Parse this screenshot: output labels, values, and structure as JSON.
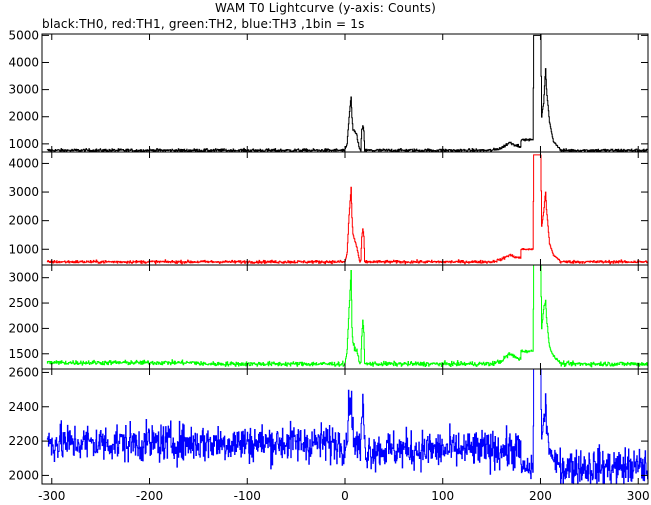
{
  "title": "WAM T0 Lightcurve (y-axis: Counts)",
  "subtitle": "black:TH0, red:TH1, green:TH2, blue:TH3 ,1bin = 1s",
  "chart_data": [
    {
      "type": "line",
      "series": [
        {
          "name": "TH0",
          "color": "#000000"
        }
      ],
      "xlim": [
        -310,
        310
      ],
      "ylim": [
        700,
        5050
      ],
      "yticks": [
        1000,
        2000,
        3000,
        4000,
        5000
      ],
      "baseline": 760,
      "noise": 28,
      "features": {
        "spike1": {
          "x": [
            0,
            2,
            4,
            6,
            7,
            8,
            10,
            12,
            14,
            15
          ],
          "y": [
            760,
            1000,
            2000,
            2750,
            2000,
            1500,
            1450,
            1300,
            900,
            760
          ]
        },
        "spike2": {
          "x": [
            16,
            17,
            18,
            19,
            20
          ],
          "y": [
            760,
            1500,
            1650,
            1500,
            760
          ]
        },
        "bump": {
          "x": [
            150,
            160,
            168,
            175,
            180
          ],
          "y": [
            760,
            850,
            1050,
            950,
            900
          ]
        },
        "step": {
          "x": [
            180,
            192,
            193,
            200,
            201,
            203,
            205,
            206,
            209,
            213,
            220
          ],
          "y": [
            1150,
            1150,
            5000,
            5000,
            2000,
            2500,
            3800,
            3000,
            1800,
            1100,
            800
          ]
        }
      }
    },
    {
      "type": "line",
      "series": [
        {
          "name": "TH1",
          "color": "#ff0000"
        }
      ],
      "xlim": [
        -310,
        310
      ],
      "ylim": [
        450,
        4400
      ],
      "yticks": [
        1000,
        2000,
        3000,
        4000
      ],
      "baseline": 560,
      "noise": 25,
      "features": {
        "spike1": {
          "x": [
            0,
            2,
            4,
            6,
            7,
            8,
            10,
            12,
            14,
            15
          ],
          "y": [
            560,
            900,
            2200,
            3150,
            2100,
            1500,
            1300,
            1050,
            700,
            560
          ]
        },
        "spike2": {
          "x": [
            16,
            17,
            18,
            19,
            20
          ],
          "y": [
            560,
            1450,
            1700,
            1450,
            560
          ]
        },
        "bump": {
          "x": [
            150,
            160,
            168,
            175,
            180
          ],
          "y": [
            560,
            650,
            800,
            720,
            700
          ]
        },
        "step": {
          "x": [
            180,
            192,
            193,
            200,
            201,
            203,
            205,
            206,
            209,
            213,
            220
          ],
          "y": [
            1000,
            1000,
            4300,
            4300,
            1800,
            2300,
            3000,
            2400,
            1200,
            800,
            600
          ]
        }
      }
    },
    {
      "type": "line",
      "series": [
        {
          "name": "TH2",
          "color": "#00ff00"
        }
      ],
      "xlim": [
        -310,
        310
      ],
      "ylim": [
        1200,
        3250
      ],
      "yticks": [
        1500,
        2000,
        2500,
        3000
      ],
      "baseline": 1300,
      "noise": 22,
      "features": {
        "spike1": {
          "x": [
            0,
            2,
            4,
            6,
            7,
            8,
            10,
            12,
            14,
            15
          ],
          "y": [
            1300,
            1600,
            2400,
            3100,
            2000,
            1700,
            1600,
            1550,
            1400,
            1300
          ]
        },
        "spike2": {
          "x": [
            16,
            17,
            18,
            19,
            20
          ],
          "y": [
            1300,
            1900,
            2150,
            1900,
            1300
          ]
        },
        "bump": {
          "x": [
            150,
            160,
            168,
            175,
            180
          ],
          "y": [
            1300,
            1360,
            1500,
            1420,
            1400
          ]
        },
        "step": {
          "x": [
            180,
            192,
            193,
            200,
            201,
            203,
            205,
            206,
            209,
            213,
            220
          ],
          "y": [
            1550,
            1550,
            3250,
            3250,
            2000,
            2400,
            2550,
            2200,
            1650,
            1450,
            1330
          ]
        }
      }
    },
    {
      "type": "line",
      "series": [
        {
          "name": "TH3",
          "color": "#0000ff"
        }
      ],
      "xlim": [
        -310,
        310
      ],
      "ylim": [
        1950,
        2620
      ],
      "yticks": [
        2000,
        2200,
        2400,
        2600
      ],
      "baseline": 2150,
      "noise": 55,
      "features": {
        "spike1": {
          "x": [
            0,
            2,
            4,
            6,
            7,
            8,
            10,
            12,
            14,
            15
          ],
          "y": [
            2150,
            2250,
            2400,
            2500,
            2300,
            2250,
            2200,
            2180,
            2160,
            2150
          ]
        },
        "spike2": {
          "x": [
            16,
            17,
            18,
            19,
            20
          ],
          "y": [
            2150,
            2300,
            2480,
            2300,
            2150
          ]
        },
        "bump": {
          "x": [
            150,
            160,
            168,
            175,
            180
          ],
          "y": [
            2150,
            2150,
            2150,
            2150,
            2150
          ]
        },
        "step": {
          "x": [
            180,
            192,
            193,
            200,
            201,
            203,
            205,
            206,
            209,
            213,
            220
          ],
          "y": [
            2040,
            2040,
            2620,
            2620,
            2200,
            2300,
            2420,
            2300,
            2150,
            2080,
            2050
          ]
        }
      }
    }
  ],
  "x_axis": {
    "ticks": [
      -300,
      -200,
      -100,
      0,
      100,
      200,
      300
    ]
  }
}
